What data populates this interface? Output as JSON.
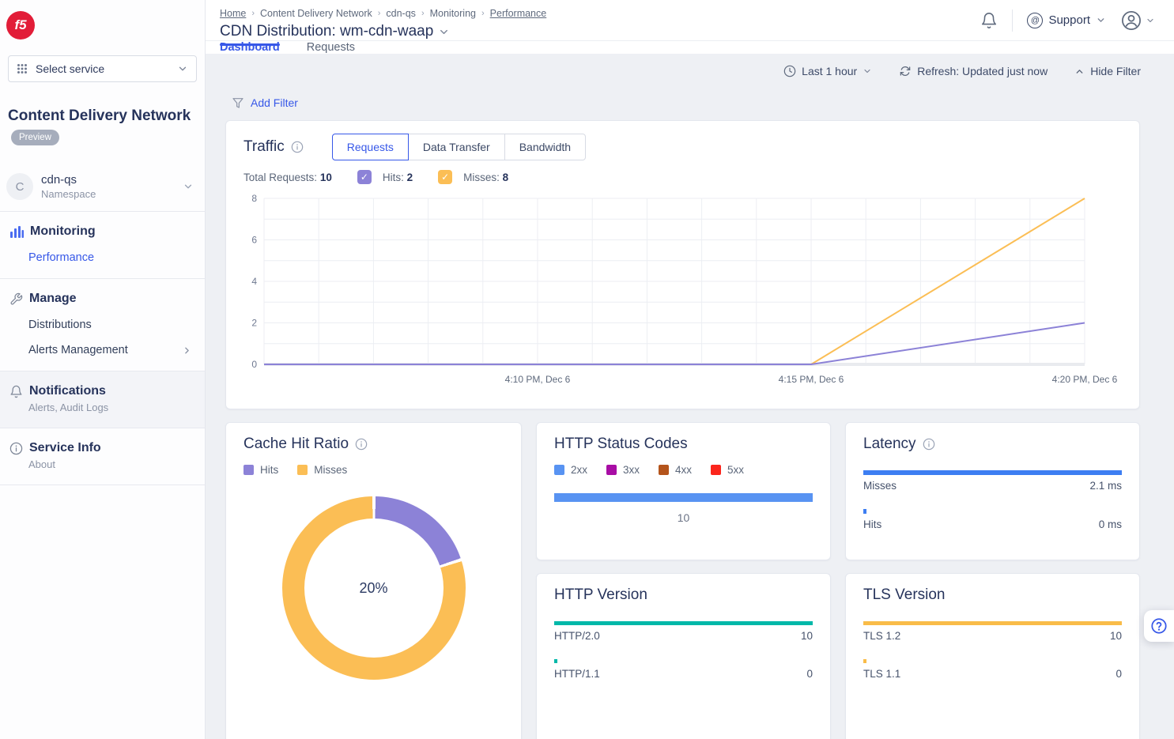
{
  "brand": {
    "logo": "f5",
    "logo_color": "#e21d38"
  },
  "sidebar": {
    "select_service": "Select service",
    "product_title": "Content Delivery Network",
    "product_badge": "Preview",
    "namespace": {
      "avatar": "C",
      "name": "cdn-qs",
      "type": "Namespace"
    },
    "monitoring_label": "Monitoring",
    "performance_label": "Performance",
    "manage_label": "Manage",
    "distributions_label": "Distributions",
    "alerts_management_label": "Alerts Management",
    "notifications_label": "Notifications",
    "notifications_sub": "Alerts, Audit Logs",
    "service_info_label": "Service Info",
    "service_info_sub": "About"
  },
  "header": {
    "breadcrumbs": [
      "Home",
      "Content Delivery Network",
      "cdn-qs",
      "Monitoring",
      "Performance"
    ],
    "title": "CDN Distribution: wm-cdn-waap",
    "support_label": "Support"
  },
  "tabs": {
    "dashboard": "Dashboard",
    "requests": "Requests"
  },
  "controls": {
    "time_range": "Last 1 hour",
    "refresh": "Refresh: Updated just now",
    "hide_filter": "Hide Filter",
    "add_filter": "Add Filter"
  },
  "traffic": {
    "title": "Traffic",
    "views": [
      "Requests",
      "Data Transfer",
      "Bandwidth"
    ],
    "active_view": "Requests",
    "total_label": "Total Requests:",
    "total_value": "10",
    "hits_label": "Hits:",
    "hits_value": "2",
    "misses_label": "Misses:",
    "misses_value": "8",
    "hits_color": "#8C82D7",
    "misses_color": "#FBBE55"
  },
  "cards": {
    "cache_hit_ratio_title": "Cache Hit Ratio",
    "http_status_codes_title": "HTTP Status Codes",
    "latency_title": "Latency",
    "http_version_title": "HTTP Version",
    "tls_version_title": "TLS Version"
  },
  "chart_data": {
    "traffic": {
      "type": "line",
      "title": "Traffic (Requests)",
      "ylim": [
        0,
        8
      ],
      "yticks": [
        0,
        2,
        4,
        6,
        8
      ],
      "x_domain": [
        "4:05 PM",
        "4:20 PM"
      ],
      "xticks": [
        {
          "time": "4:10 PM",
          "label": "4:10 PM, Dec 6"
        },
        {
          "time": "4:15 PM",
          "label": "4:15 PM, Dec 6"
        },
        {
          "time": "4:20 PM",
          "label": "4:20 PM, Dec 6"
        }
      ],
      "grid": true,
      "legend_position": "none",
      "series": [
        {
          "name": "Misses",
          "color": "#FBBE55",
          "points": [
            [
              "4:05 PM",
              0
            ],
            [
              "4:15 PM",
              0
            ],
            [
              "4:20 PM",
              8
            ]
          ]
        },
        {
          "name": "Hits",
          "color": "#8C82D7",
          "points": [
            [
              "4:05 PM",
              0
            ],
            [
              "4:15 PM",
              0
            ],
            [
              "4:20 PM",
              2
            ]
          ]
        }
      ]
    },
    "cache_hit_ratio": {
      "type": "donut",
      "center_label": "20%",
      "slices": [
        {
          "name": "Hits",
          "value": 20,
          "color": "#8C82D7"
        },
        {
          "name": "Misses",
          "value": 80,
          "color": "#FBBE55"
        }
      ]
    },
    "http_status_codes": {
      "type": "bar",
      "legend": [
        {
          "label": "2xx",
          "color": "#5893F2"
        },
        {
          "label": "3xx",
          "color": "#A80DA5"
        },
        {
          "label": "4xx",
          "color": "#B4541B"
        },
        {
          "label": "5xx",
          "color": "#FB251C"
        }
      ],
      "max": 10,
      "bars": [
        {
          "label": "10",
          "value": 10,
          "color": "#5893F2"
        }
      ]
    },
    "latency": {
      "type": "bar",
      "color": "#3D7EF2",
      "max": 2.1,
      "bars": [
        {
          "label": "Misses",
          "value": 2.1,
          "value_label": "2.1 ms"
        },
        {
          "label": "Hits",
          "value": 0,
          "value_label": "0 ms"
        }
      ]
    },
    "http_version": {
      "type": "bar",
      "color": "#00B8A9",
      "max": 10,
      "bars": [
        {
          "label": "HTTP/2.0",
          "value": 10,
          "value_label": "10"
        },
        {
          "label": "HTTP/1.1",
          "value": 0,
          "value_label": "0"
        }
      ]
    },
    "tls_version": {
      "type": "bar",
      "color": "#F9BC49",
      "max": 10,
      "bars": [
        {
          "label": "TLS 1.2",
          "value": 10,
          "value_label": "10"
        },
        {
          "label": "TLS 1.1",
          "value": 0,
          "value_label": "0"
        }
      ]
    }
  }
}
